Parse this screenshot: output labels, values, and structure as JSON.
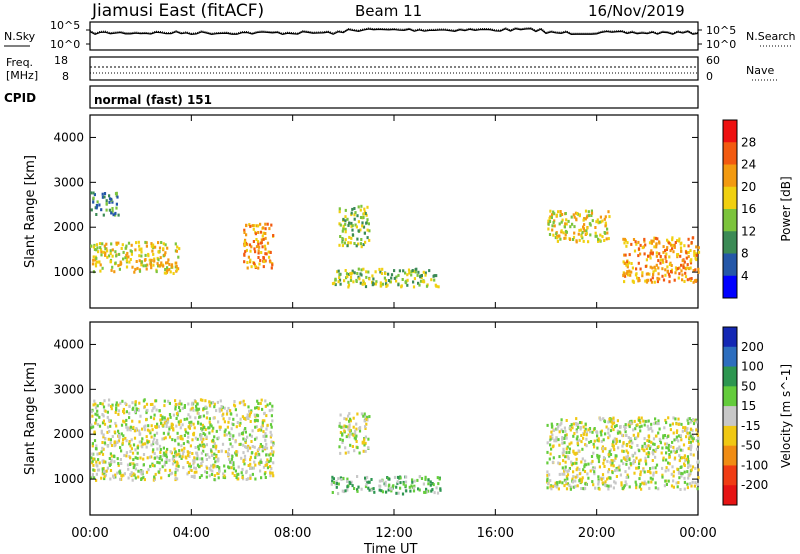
{
  "header": {
    "station": "Jiamusi East (fitACF)",
    "beam": "Beam 11",
    "date": "16/Nov/2019"
  },
  "status_panels": {
    "nsky_label": "N.Sky",
    "nsearch_label": "N.Search",
    "noise_ticks_left": [
      "10^5",
      "10^0"
    ],
    "noise_ticks_right": [
      "10^5",
      "10^0"
    ],
    "freq_label_1": "Freq.",
    "freq_label_2": "[MHz]",
    "freq_ticks": [
      "18",
      "8"
    ],
    "nave_label": "Nave",
    "nave_ticks": [
      "60",
      "0"
    ],
    "cpid_label": "CPID",
    "cpid_value": "normal (fast) 151"
  },
  "chart_data": [
    {
      "type": "heatmap",
      "name": "power",
      "ylabel": "Slant Range [km]",
      "ylim": [
        200,
        4500
      ],
      "yticks": [
        "1000",
        "2000",
        "3000",
        "4000"
      ],
      "colorbar": {
        "label": "Power [dB]",
        "ticks": [
          "4",
          "8",
          "12",
          "16",
          "20",
          "24",
          "28"
        ],
        "colors": [
          "#0000ff",
          "#2457a8",
          "#3b8a55",
          "#7cc43c",
          "#f0d010",
          "#f39a10",
          "#f25a10",
          "#ee1010"
        ]
      },
      "regions": [
        {
          "x": [
            0.0,
            1.1
          ],
          "y": [
            2300,
            2800
          ],
          "level": 2
        },
        {
          "x": [
            0.0,
            3.5
          ],
          "y": [
            1000,
            1700
          ],
          "level": 4
        },
        {
          "x": [
            6.0,
            7.2
          ],
          "y": [
            1100,
            2100
          ],
          "level": 5
        },
        {
          "x": [
            9.8,
            11.0
          ],
          "y": [
            1600,
            2500
          ],
          "level": 3
        },
        {
          "x": [
            9.5,
            13.8
          ],
          "y": [
            700,
            1100
          ],
          "level": 3
        },
        {
          "x": [
            18.0,
            20.5
          ],
          "y": [
            1700,
            2400
          ],
          "level": 4
        },
        {
          "x": [
            21.0,
            24.0
          ],
          "y": [
            800,
            1800
          ],
          "level": 5
        }
      ]
    },
    {
      "type": "heatmap",
      "name": "velocity",
      "ylabel": "Slant Range [km]",
      "xlabel": "Time UT",
      "xticks": [
        "00:00",
        "04:00",
        "08:00",
        "12:00",
        "16:00",
        "20:00",
        "00:00"
      ],
      "ylim": [
        200,
        4500
      ],
      "yticks": [
        "1000",
        "2000",
        "3000",
        "4000"
      ],
      "colorbar": {
        "label": "Velocity [m s^-1]",
        "ticks": [
          "200",
          "100",
          "50",
          "15",
          "-15",
          "-50",
          "-100",
          "-200"
        ],
        "colors": [
          "#1428b4",
          "#2d6ebe",
          "#2d9650",
          "#64cc3c",
          "#c8c8c8",
          "#f0c814",
          "#f08c14",
          "#f03c14",
          "#e61414"
        ]
      },
      "regions": [
        {
          "x": [
            0.0,
            7.2
          ],
          "y": [
            1000,
            2800
          ],
          "level": 4
        },
        {
          "x": [
            9.8,
            11.0
          ],
          "y": [
            1600,
            2500
          ],
          "level": 4
        },
        {
          "x": [
            9.5,
            13.8
          ],
          "y": [
            700,
            1100
          ],
          "level": 3
        },
        {
          "x": [
            18.0,
            24.0
          ],
          "y": [
            800,
            2400
          ],
          "level": 4
        }
      ]
    }
  ]
}
